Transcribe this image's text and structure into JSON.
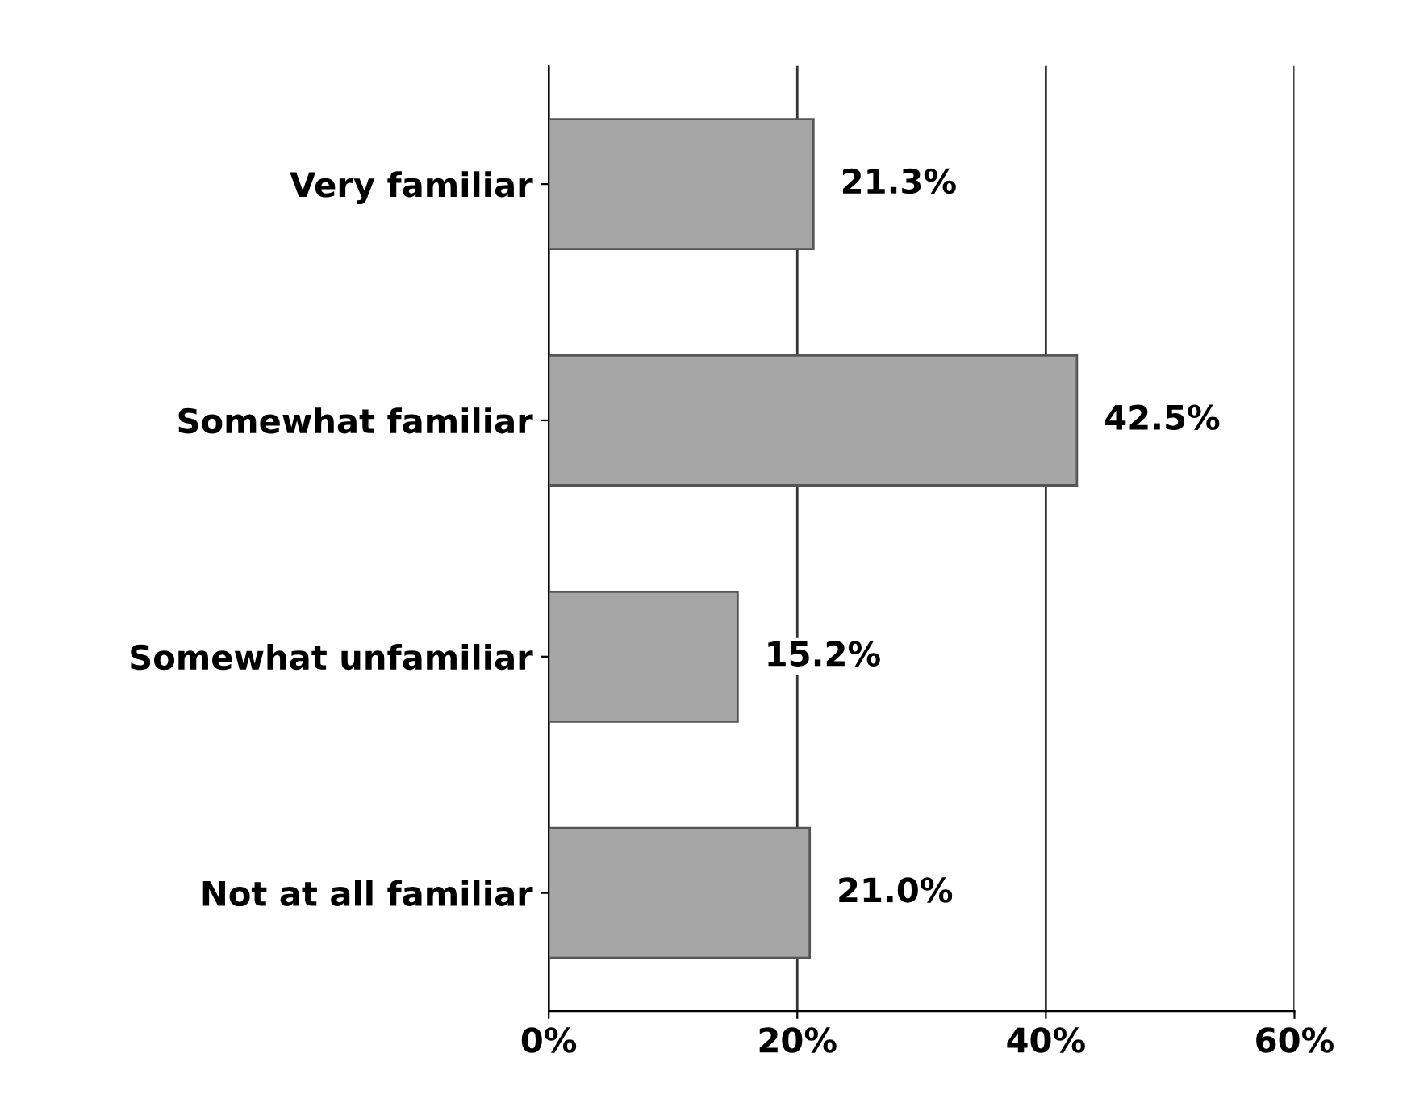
{
  "chart_data": {
    "type": "bar",
    "orientation": "horizontal",
    "categories": [
      "Very familiar",
      "Somewhat familiar",
      "Somewhat unfamiliar",
      "Not at all familiar"
    ],
    "values": [
      21.3,
      42.5,
      15.2,
      21.0
    ],
    "value_labels": [
      "21.3%",
      "42.5%",
      "15.2%",
      "21.0%"
    ],
    "color": "#a6a6a6",
    "xlim": [
      0,
      60
    ],
    "xticks": [
      {
        "value": 0,
        "label": "0%"
      },
      {
        "value": 20,
        "label": "20%"
      },
      {
        "value": 40,
        "label": "40%"
      },
      {
        "value": 60,
        "label": "60%"
      }
    ],
    "grid": "x"
  }
}
